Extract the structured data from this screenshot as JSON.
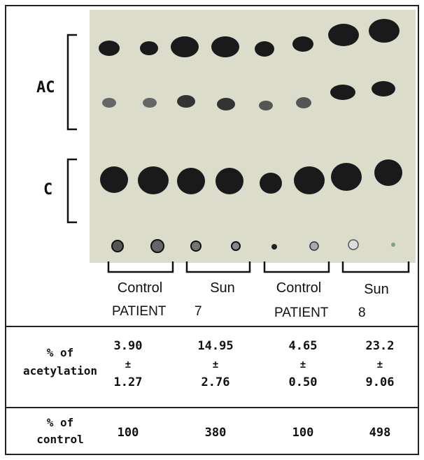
{
  "labels": {
    "ac": "AC",
    "c": "C"
  },
  "lanes": [
    "Control",
    "Sun",
    "Control",
    "Sun"
  ],
  "patients": [
    "PATIENT",
    "7",
    "PATIENT",
    "8"
  ],
  "table": {
    "rows": [
      {
        "label": [
          "% of",
          "acetylation"
        ],
        "cells": [
          [
            "3.90",
            "±",
            "1.27"
          ],
          [
            "14.95",
            "±",
            "2.76"
          ],
          [
            "4.65",
            "±",
            "0.50"
          ],
          [
            "23.2",
            "±",
            "9.06"
          ]
        ]
      },
      {
        "label": [
          "% of",
          "control"
        ],
        "cells": [
          "100",
          "380",
          "100",
          "498"
        ]
      }
    ]
  }
}
